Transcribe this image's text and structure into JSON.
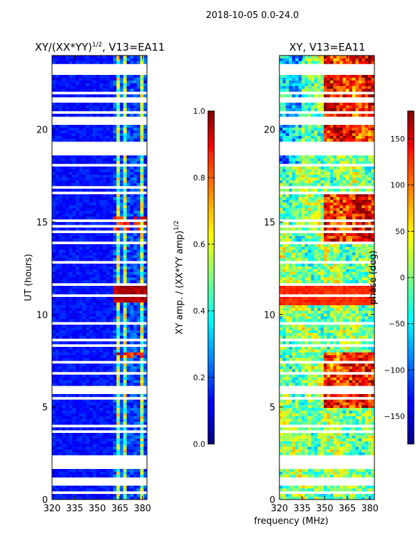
{
  "figure_title": "2018-10-05 0.0-24.0",
  "chart_data": [
    {
      "type": "heatmap",
      "title_main": "XY/(XX*YY)",
      "title_sup": "1/2",
      "title_tail": ", V13=EA11",
      "xlabel": "",
      "ylabel": "UT (hours)",
      "x_range": [
        320,
        383
      ],
      "y_range": [
        0,
        24
      ],
      "xticks": [
        "320",
        "335",
        "350",
        "365",
        "380"
      ],
      "xtick_values": [
        320,
        335,
        350,
        365,
        380
      ],
      "yticks": [
        "0",
        "5",
        "10",
        "15",
        "20"
      ],
      "ytick_values": [
        0,
        5,
        10,
        15,
        20
      ],
      "colorbar": {
        "label_main": "XY amp. / (XX*YY amp)",
        "label_sup": "1/2",
        "range": [
          0.0,
          1.0
        ],
        "ticks": [
          "0.0",
          "0.2",
          "0.4",
          "0.6",
          "0.8",
          "1.0"
        ],
        "tick_values": [
          0.0,
          0.2,
          0.4,
          0.6,
          0.8,
          1.0
        ],
        "colormap": "jet"
      }
    },
    {
      "type": "heatmap",
      "title": "XY, V13=EA11",
      "xlabel": "frequency (MHz)",
      "ylabel": "",
      "x_range": [
        320,
        383
      ],
      "y_range": [
        0,
        24
      ],
      "xticks": [
        "320",
        "335",
        "350",
        "365",
        "380"
      ],
      "xtick_values": [
        320,
        335,
        350,
        365,
        380
      ],
      "yticks": [
        "0",
        "5",
        "10",
        "15",
        "20"
      ],
      "ytick_values": [
        0,
        5,
        10,
        15,
        20
      ],
      "colorbar": {
        "label": "phase (deg)",
        "range": [
          -180,
          180
        ],
        "ticks": [
          "−150",
          "−100",
          "−50",
          "0",
          "50",
          "100",
          "150"
        ],
        "tick_values": [
          -150,
          -100,
          -50,
          0,
          50,
          100,
          150
        ],
        "colormap": "jet"
      }
    }
  ]
}
